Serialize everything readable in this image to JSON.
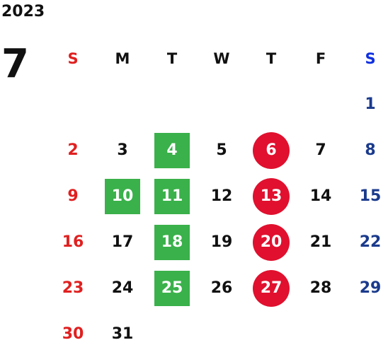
{
  "calendar": {
    "year": "2023",
    "month": "7",
    "weekdays": [
      "S",
      "M",
      "T",
      "W",
      "T",
      "F",
      "S"
    ],
    "highlight_colors": {
      "green": "#3ab14a",
      "red": "#e0102e",
      "sunday": "#e02020",
      "saturday": "#1a3a8c"
    },
    "weeks": [
      [
        {
          "day": ""
        },
        {
          "day": ""
        },
        {
          "day": ""
        },
        {
          "day": ""
        },
        {
          "day": ""
        },
        {
          "day": ""
        },
        {
          "day": "1"
        }
      ],
      [
        {
          "day": "2"
        },
        {
          "day": "3"
        },
        {
          "day": "4",
          "mark": "green"
        },
        {
          "day": "5"
        },
        {
          "day": "6",
          "mark": "red"
        },
        {
          "day": "7"
        },
        {
          "day": "8"
        }
      ],
      [
        {
          "day": "9"
        },
        {
          "day": "10",
          "mark": "green"
        },
        {
          "day": "11",
          "mark": "green"
        },
        {
          "day": "12"
        },
        {
          "day": "13",
          "mark": "red"
        },
        {
          "day": "14"
        },
        {
          "day": "15"
        }
      ],
      [
        {
          "day": "16"
        },
        {
          "day": "17"
        },
        {
          "day": "18",
          "mark": "green"
        },
        {
          "day": "19"
        },
        {
          "day": "20",
          "mark": "red"
        },
        {
          "day": "21"
        },
        {
          "day": "22"
        }
      ],
      [
        {
          "day": "23"
        },
        {
          "day": "24"
        },
        {
          "day": "25",
          "mark": "green"
        },
        {
          "day": "26"
        },
        {
          "day": "27",
          "mark": "red"
        },
        {
          "day": "28"
        },
        {
          "day": "29"
        }
      ],
      [
        {
          "day": "30"
        },
        {
          "day": "31"
        },
        {
          "day": ""
        },
        {
          "day": ""
        },
        {
          "day": ""
        },
        {
          "day": ""
        },
        {
          "day": ""
        }
      ]
    ]
  }
}
